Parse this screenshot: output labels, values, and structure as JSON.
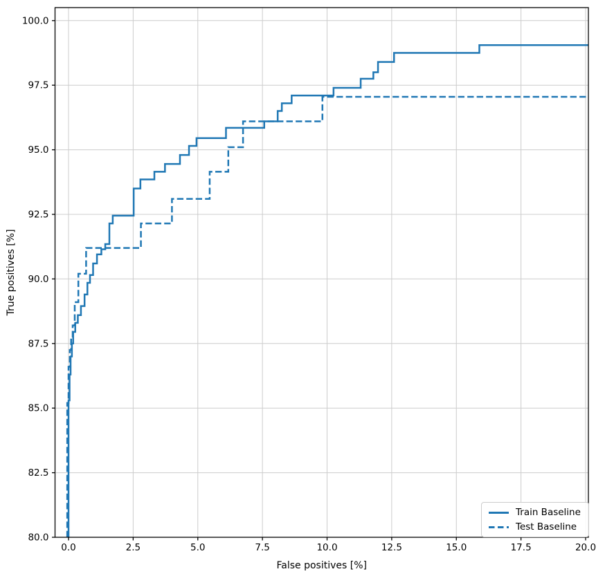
{
  "chart_data": {
    "type": "line",
    "subtype": "roc-step-curve",
    "title": "",
    "xlabel": "False positives [%]",
    "ylabel": "True positives [%]",
    "xlim": [
      -0.51,
      20.11
    ],
    "ylim": [
      80.0,
      100.5
    ],
    "grid": true,
    "grid_color": "#cccccc",
    "spine_color": "#000000",
    "line_color": "#1f77b4",
    "legend_position": "lower right",
    "xticks": {
      "values": [
        0.0,
        2.5,
        5.0,
        7.5,
        10.0,
        12.5,
        15.0,
        17.5,
        20.0
      ],
      "labels": [
        "0.0",
        "2.5",
        "5.0",
        "7.5",
        "10.0",
        "12.5",
        "15.0",
        "17.5",
        "20.0"
      ]
    },
    "yticks": {
      "values": [
        80.0,
        82.5,
        85.0,
        87.5,
        90.0,
        92.5,
        95.0,
        97.5,
        100.0
      ],
      "labels": [
        "80.0",
        "82.5",
        "85.0",
        "87.5",
        "90.0",
        "92.5",
        "95.0",
        "97.5",
        "100.0"
      ]
    },
    "series": [
      {
        "name": "Train Baseline",
        "style": "solid",
        "points": [
          [
            0.0,
            80.0
          ],
          [
            0.0,
            85.3
          ],
          [
            0.04,
            85.3
          ],
          [
            0.04,
            86.3
          ],
          [
            0.08,
            86.3
          ],
          [
            0.08,
            87.0
          ],
          [
            0.13,
            87.0
          ],
          [
            0.13,
            87.5
          ],
          [
            0.18,
            87.5
          ],
          [
            0.18,
            87.95
          ],
          [
            0.26,
            87.95
          ],
          [
            0.26,
            88.3
          ],
          [
            0.36,
            88.3
          ],
          [
            0.36,
            88.6
          ],
          [
            0.48,
            88.6
          ],
          [
            0.48,
            88.95
          ],
          [
            0.62,
            88.95
          ],
          [
            0.62,
            89.4
          ],
          [
            0.73,
            89.4
          ],
          [
            0.73,
            89.85
          ],
          [
            0.83,
            89.85
          ],
          [
            0.83,
            90.15
          ],
          [
            0.95,
            90.15
          ],
          [
            0.95,
            90.6
          ],
          [
            1.1,
            90.6
          ],
          [
            1.1,
            90.95
          ],
          [
            1.27,
            90.95
          ],
          [
            1.27,
            91.15
          ],
          [
            1.42,
            91.15
          ],
          [
            1.42,
            91.35
          ],
          [
            1.58,
            91.35
          ],
          [
            1.58,
            92.15
          ],
          [
            1.71,
            92.15
          ],
          [
            1.71,
            92.45
          ],
          [
            2.52,
            92.45
          ],
          [
            2.52,
            93.5
          ],
          [
            2.78,
            93.5
          ],
          [
            2.78,
            93.85
          ],
          [
            3.32,
            93.85
          ],
          [
            3.32,
            94.15
          ],
          [
            3.73,
            94.15
          ],
          [
            3.73,
            94.45
          ],
          [
            4.31,
            94.45
          ],
          [
            4.31,
            94.8
          ],
          [
            4.66,
            94.8
          ],
          [
            4.66,
            95.15
          ],
          [
            4.95,
            95.15
          ],
          [
            4.95,
            95.45
          ],
          [
            6.09,
            95.45
          ],
          [
            6.09,
            95.85
          ],
          [
            7.57,
            95.85
          ],
          [
            7.57,
            96.1
          ],
          [
            8.09,
            96.1
          ],
          [
            8.09,
            96.5
          ],
          [
            8.25,
            96.5
          ],
          [
            8.25,
            96.8
          ],
          [
            8.63,
            96.8
          ],
          [
            8.63,
            97.1
          ],
          [
            10.25,
            97.1
          ],
          [
            10.25,
            97.4
          ],
          [
            11.3,
            97.4
          ],
          [
            11.3,
            97.75
          ],
          [
            11.79,
            97.75
          ],
          [
            11.79,
            98.0
          ],
          [
            11.97,
            98.0
          ],
          [
            11.97,
            98.4
          ],
          [
            12.59,
            98.4
          ],
          [
            12.59,
            98.75
          ],
          [
            15.89,
            98.75
          ],
          [
            15.89,
            99.05
          ],
          [
            20.2,
            99.05
          ]
        ]
      },
      {
        "name": "Test Baseline",
        "style": "dashed",
        "points": [
          [
            -0.05,
            80.0
          ],
          [
            -0.05,
            85.2
          ],
          [
            0.0,
            85.2
          ],
          [
            0.0,
            86.6
          ],
          [
            0.05,
            86.6
          ],
          [
            0.05,
            87.25
          ],
          [
            0.1,
            87.25
          ],
          [
            0.1,
            87.7
          ],
          [
            0.16,
            87.7
          ],
          [
            0.16,
            88.2
          ],
          [
            0.24,
            88.2
          ],
          [
            0.24,
            89.1
          ],
          [
            0.38,
            89.1
          ],
          [
            0.38,
            90.2
          ],
          [
            0.68,
            90.2
          ],
          [
            0.68,
            91.2
          ],
          [
            2.8,
            91.2
          ],
          [
            2.8,
            92.15
          ],
          [
            4.0,
            92.15
          ],
          [
            4.0,
            93.1
          ],
          [
            5.46,
            93.1
          ],
          [
            5.46,
            94.15
          ],
          [
            6.18,
            94.15
          ],
          [
            6.18,
            95.1
          ],
          [
            6.75,
            95.1
          ],
          [
            6.75,
            96.1
          ],
          [
            9.82,
            96.1
          ],
          [
            9.82,
            97.05
          ],
          [
            20.2,
            97.05
          ]
        ]
      }
    ]
  }
}
